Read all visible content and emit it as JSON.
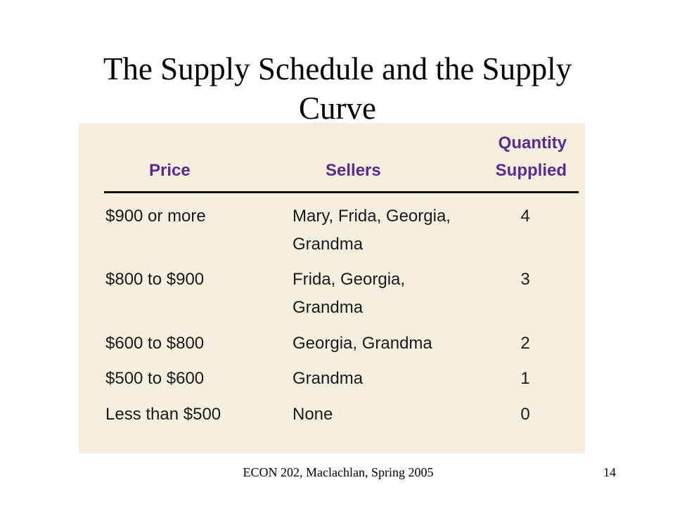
{
  "title": "The Supply Schedule and the Supply Curve",
  "table": {
    "headers": [
      "Price",
      "Sellers",
      "Quantity Supplied"
    ],
    "rows": [
      [
        "$900 or more",
        "Mary, Frida, Georgia, Grandma",
        "4"
      ],
      [
        "$800 to $900",
        "Frida, Georgia, Grandma",
        "3"
      ],
      [
        "$600 to $800",
        "Georgia, Grandma",
        "2"
      ],
      [
        "$500 to $600",
        "Grandma",
        "1"
      ],
      [
        "Less than $500",
        "None",
        "0"
      ]
    ]
  },
  "footer": {
    "text": "ECON 202, Maclachlan, Spring 2005",
    "page": "14"
  }
}
